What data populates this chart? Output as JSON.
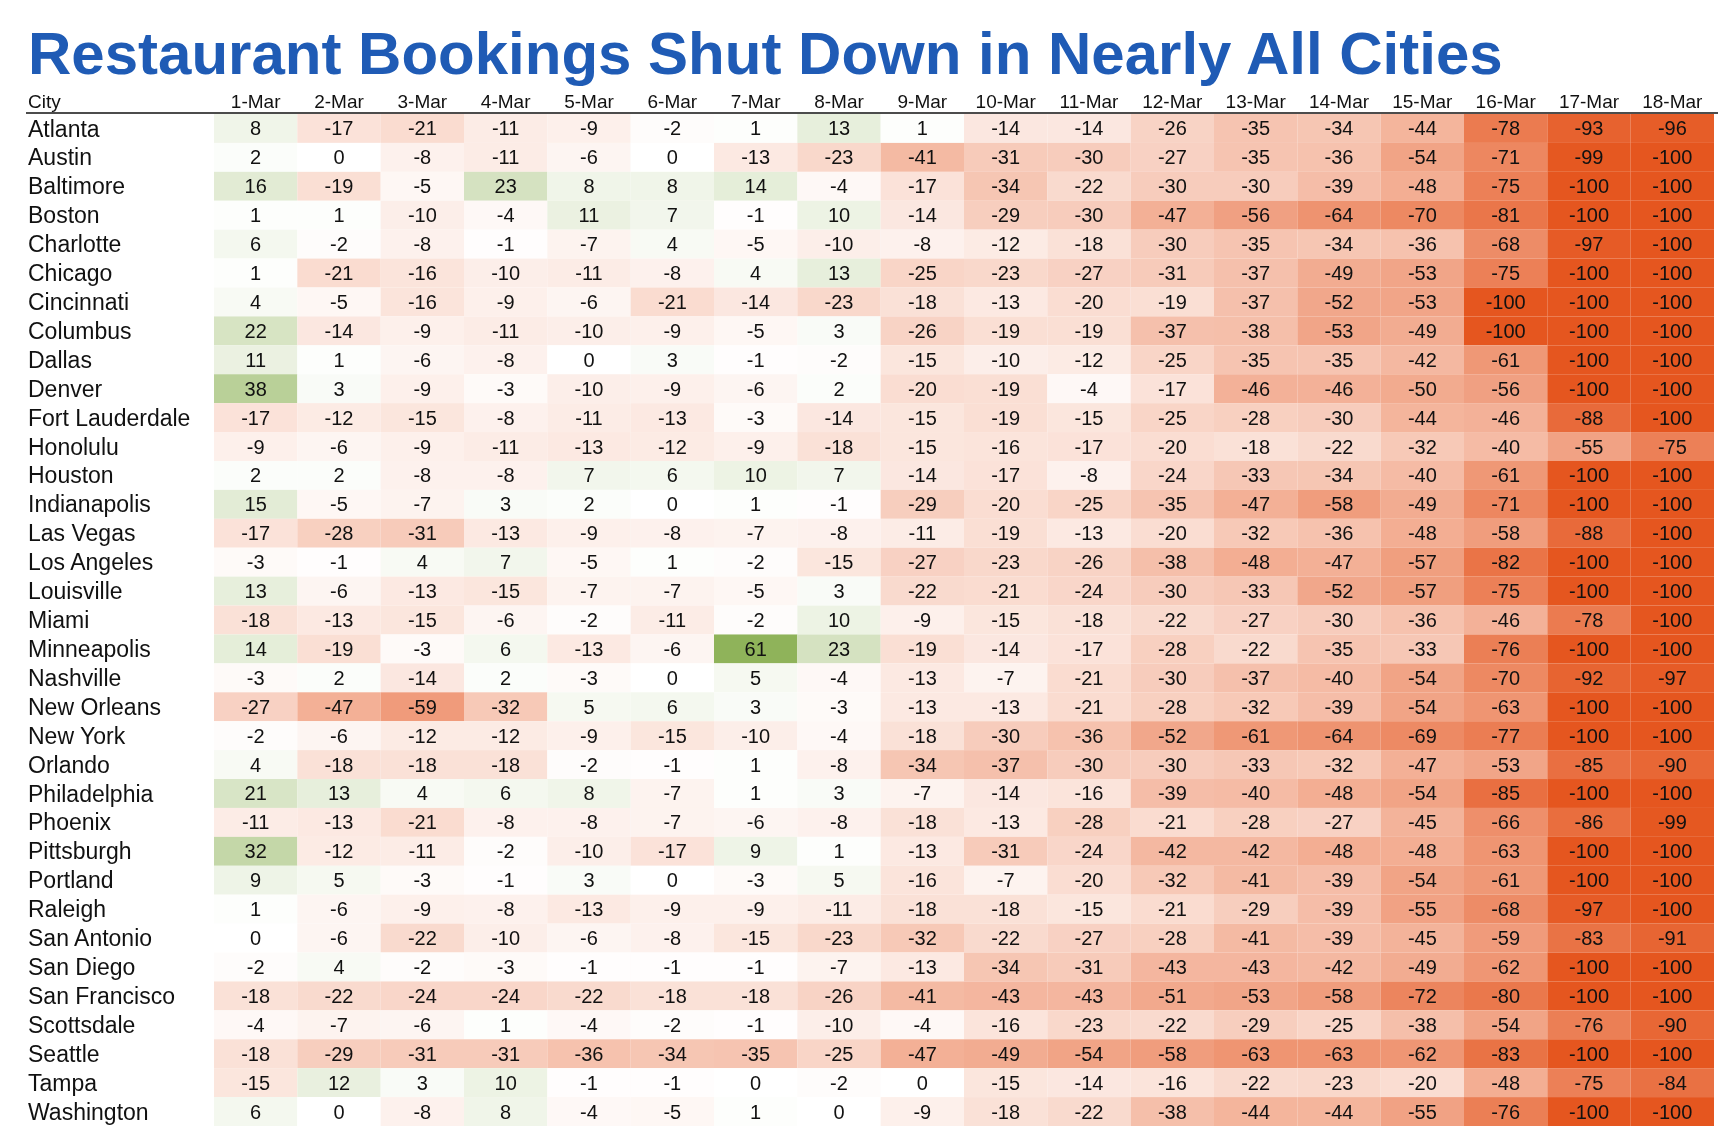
{
  "chart_data": {
    "type": "heatmap",
    "title": "Restaurant Bookings Shut Down in Nearly All Cities",
    "ylabel": "City",
    "data_labels": true,
    "categories": [
      "1-Mar",
      "2-Mar",
      "3-Mar",
      "4-Mar",
      "5-Mar",
      "6-Mar",
      "7-Mar",
      "8-Mar",
      "9-Mar",
      "10-Mar",
      "11-Mar",
      "12-Mar",
      "13-Mar",
      "14-Mar",
      "15-Mar",
      "16-Mar",
      "17-Mar",
      "18-Mar"
    ],
    "y_categories": [
      "Atlanta",
      "Austin",
      "Baltimore",
      "Boston",
      "Charlotte",
      "Chicago",
      "Cincinnati",
      "Columbus",
      "Dallas",
      "Denver",
      "Fort Lauderdale",
      "Honolulu",
      "Houston",
      "Indianapolis",
      "Las Vegas",
      "Los Angeles",
      "Louisville",
      "Miami",
      "Minneapolis",
      "Nashville",
      "New Orleans",
      "New York",
      "Orlando",
      "Philadelphia",
      "Phoenix",
      "Pittsburgh",
      "Portland",
      "Raleigh",
      "San Antonio",
      "San Diego",
      "San Francisco",
      "Scottsdale",
      "Seattle",
      "Tampa",
      "Washington"
    ],
    "cells": [
      [
        8,
        -17,
        -21,
        -11,
        -9,
        -2,
        1,
        13,
        1,
        -14,
        -14,
        -26,
        -35,
        -34,
        -44,
        -78,
        -93,
        -96
      ],
      [
        2,
        0,
        -8,
        -11,
        -6,
        0,
        -13,
        -23,
        -41,
        -31,
        -30,
        -27,
        -35,
        -36,
        -54,
        -71,
        -99,
        -100
      ],
      [
        16,
        -19,
        -5,
        23,
        8,
        8,
        14,
        -4,
        -17,
        -34,
        -22,
        -30,
        -30,
        -39,
        -48,
        -75,
        -100,
        -100
      ],
      [
        1,
        1,
        -10,
        -4,
        11,
        7,
        -1,
        10,
        -14,
        -29,
        -30,
        -47,
        -56,
        -64,
        -70,
        -81,
        -100,
        -100
      ],
      [
        6,
        -2,
        -8,
        -1,
        -7,
        4,
        -5,
        -10,
        -8,
        -12,
        -18,
        -30,
        -35,
        -34,
        -36,
        -68,
        -97,
        -100
      ],
      [
        1,
        -21,
        -16,
        -10,
        -11,
        -8,
        4,
        13,
        -25,
        -23,
        -27,
        -31,
        -37,
        -49,
        -53,
        -75,
        -100,
        -100
      ],
      [
        4,
        -5,
        -16,
        -9,
        -6,
        -21,
        -14,
        -23,
        -18,
        -13,
        -20,
        -19,
        -37,
        -52,
        -53,
        -100,
        -100,
        -100
      ],
      [
        22,
        -14,
        -9,
        -11,
        -10,
        -9,
        -5,
        3,
        -26,
        -19,
        -19,
        -37,
        -38,
        -53,
        -49,
        -100,
        -100,
        -100
      ],
      [
        11,
        1,
        -6,
        -8,
        0,
        3,
        -1,
        -2,
        -15,
        -10,
        -12,
        -25,
        -35,
        -35,
        -42,
        -61,
        -100,
        -100
      ],
      [
        38,
        3,
        -9,
        -3,
        -10,
        -9,
        -6,
        2,
        -20,
        -19,
        -4,
        -17,
        -46,
        -46,
        -50,
        -56,
        -100,
        -100
      ],
      [
        -17,
        -12,
        -15,
        -8,
        -11,
        -13,
        -3,
        -14,
        -15,
        -19,
        -15,
        -25,
        -28,
        -30,
        -44,
        -46,
        -88,
        -100
      ],
      [
        -9,
        -6,
        -9,
        -11,
        -13,
        -12,
        -9,
        -18,
        -15,
        -16,
        -17,
        -20,
        -18,
        -22,
        -32,
        -40,
        -55,
        -75
      ],
      [
        2,
        2,
        -8,
        -8,
        7,
        6,
        10,
        7,
        -14,
        -17,
        -8,
        -24,
        -33,
        -34,
        -40,
        -61,
        -100,
        -100
      ],
      [
        15,
        -5,
        -7,
        3,
        2,
        0,
        1,
        -1,
        -29,
        -20,
        -25,
        -35,
        -47,
        -58,
        -49,
        -71,
        -100,
        -100
      ],
      [
        -17,
        -28,
        -31,
        -13,
        -9,
        -8,
        -7,
        -8,
        -11,
        -19,
        -13,
        -20,
        -32,
        -36,
        -48,
        -58,
        -88,
        -100
      ],
      [
        -3,
        -1,
        4,
        7,
        -5,
        1,
        -2,
        -15,
        -27,
        -23,
        -26,
        -38,
        -48,
        -47,
        -57,
        -82,
        -100,
        -100
      ],
      [
        13,
        -6,
        -13,
        -15,
        -7,
        -7,
        -5,
        3,
        -22,
        -21,
        -24,
        -30,
        -33,
        -52,
        -57,
        -75,
        -100,
        -100
      ],
      [
        -18,
        -13,
        -15,
        -6,
        -2,
        -11,
        -2,
        10,
        -9,
        -15,
        -18,
        -22,
        -27,
        -30,
        -36,
        -46,
        -78,
        -100
      ],
      [
        14,
        -19,
        -3,
        6,
        -13,
        -6,
        61,
        23,
        -19,
        -14,
        -17,
        -28,
        -22,
        -35,
        -33,
        -76,
        -100,
        -100
      ],
      [
        -3,
        2,
        -14,
        2,
        -3,
        0,
        5,
        -4,
        -13,
        -7,
        -21,
        -30,
        -37,
        -40,
        -54,
        -70,
        -92,
        -97
      ],
      [
        -27,
        -47,
        -59,
        -32,
        5,
        6,
        3,
        -3,
        -13,
        -13,
        -21,
        -28,
        -32,
        -39,
        -54,
        -63,
        -100,
        -100
      ],
      [
        -2,
        -6,
        -12,
        -12,
        -9,
        -15,
        -10,
        -4,
        -18,
        -30,
        -36,
        -52,
        -61,
        -64,
        -69,
        -77,
        -100,
        -100
      ],
      [
        4,
        -18,
        -18,
        -18,
        -2,
        -1,
        1,
        -8,
        -34,
        -37,
        -30,
        -30,
        -33,
        -32,
        -47,
        -53,
        -85,
        -90
      ],
      [
        21,
        13,
        4,
        6,
        8,
        -7,
        1,
        3,
        -7,
        -14,
        -16,
        -39,
        -40,
        -48,
        -54,
        -85,
        -100,
        -100
      ],
      [
        -11,
        -13,
        -21,
        -8,
        -8,
        -7,
        -6,
        -8,
        -18,
        -13,
        -28,
        -21,
        -28,
        -27,
        -45,
        -66,
        -86,
        -99
      ],
      [
        32,
        -12,
        -11,
        -2,
        -10,
        -17,
        9,
        1,
        -13,
        -31,
        -24,
        -42,
        -42,
        -48,
        -48,
        -63,
        -100,
        -100
      ],
      [
        9,
        5,
        -3,
        -1,
        3,
        0,
        -3,
        5,
        -16,
        -7,
        -20,
        -32,
        -41,
        -39,
        -54,
        -61,
        -100,
        -100
      ],
      [
        1,
        -6,
        -9,
        -8,
        -13,
        -9,
        -9,
        -11,
        -18,
        -18,
        -15,
        -21,
        -29,
        -39,
        -55,
        -68,
        -97,
        -100
      ],
      [
        0,
        -6,
        -22,
        -10,
        -6,
        -8,
        -15,
        -23,
        -32,
        -22,
        -27,
        -28,
        -41,
        -39,
        -45,
        -59,
        -83,
        -91
      ],
      [
        -2,
        4,
        -2,
        -3,
        -1,
        -1,
        -1,
        -7,
        -13,
        -34,
        -31,
        -43,
        -43,
        -42,
        -49,
        -62,
        -100,
        -100
      ],
      [
        -18,
        -22,
        -24,
        -24,
        -22,
        -18,
        -18,
        -26,
        -41,
        -43,
        -43,
        -51,
        -53,
        -58,
        -72,
        -80,
        -100,
        -100
      ],
      [
        -4,
        -7,
        -6,
        1,
        -4,
        -2,
        -1,
        -10,
        -4,
        -16,
        -23,
        -22,
        -29,
        -25,
        -38,
        -54,
        -76,
        -90
      ],
      [
        -18,
        -29,
        -31,
        -31,
        -36,
        -34,
        -35,
        -25,
        -47,
        -49,
        -54,
        -58,
        -63,
        -63,
        -62,
        -83,
        -100,
        -100
      ],
      [
        -15,
        12,
        3,
        10,
        -1,
        -1,
        0,
        -2,
        0,
        -15,
        -14,
        -16,
        -22,
        -23,
        -20,
        -48,
        -75,
        -84
      ],
      [
        6,
        0,
        -8,
        8,
        -4,
        -5,
        1,
        0,
        -9,
        -18,
        -22,
        -38,
        -44,
        -44,
        -55,
        -76,
        -100,
        -100
      ]
    ]
  }
}
